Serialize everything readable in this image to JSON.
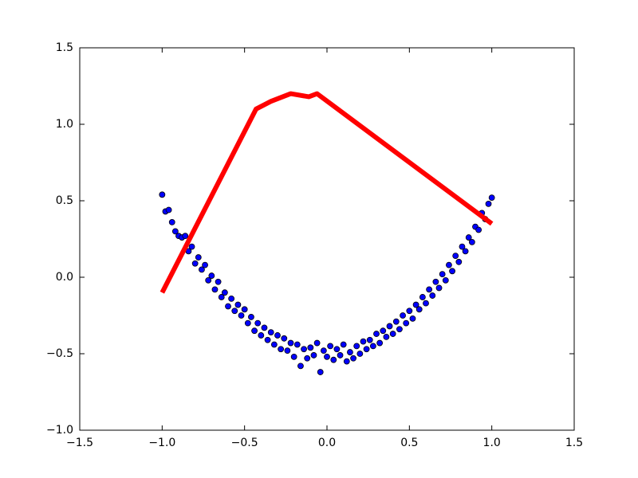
{
  "chart_data": {
    "type": "scatter",
    "xlim": [
      -1.5,
      1.5
    ],
    "ylim": [
      -1.0,
      1.5
    ],
    "xticks": [
      {
        "value": -1.5,
        "label": "−1.5"
      },
      {
        "value": -1.0,
        "label": "−1.0"
      },
      {
        "value": -0.5,
        "label": "−0.5"
      },
      {
        "value": 0.0,
        "label": "0.0"
      },
      0.5,
      {
        "value": 1.0,
        "label": "1.0"
      },
      1.5
    ],
    "yticks": [
      {
        "value": -1.0,
        "label": "−1.0"
      },
      {
        "value": -0.5,
        "label": "−0.5"
      },
      {
        "value": 0.0,
        "label": "0.0"
      },
      0.5,
      {
        "value": 1.0,
        "label": "1.0"
      },
      1.5
    ],
    "grid": false,
    "series": [
      {
        "type": "scatter",
        "color": "#0000ff",
        "x": [
          -1.0,
          -0.98,
          -0.96,
          -0.94,
          -0.92,
          -0.9,
          -0.88,
          -0.86,
          -0.84,
          -0.82,
          -0.8,
          -0.78,
          -0.76,
          -0.74,
          -0.72,
          -0.7,
          -0.68,
          -0.66,
          -0.64,
          -0.62,
          -0.6,
          -0.58,
          -0.56,
          -0.54,
          -0.52,
          -0.5,
          -0.48,
          -0.46,
          -0.44,
          -0.42,
          -0.4,
          -0.38,
          -0.36,
          -0.34,
          -0.32,
          -0.3,
          -0.28,
          -0.26,
          -0.24,
          -0.22,
          -0.2,
          -0.18,
          -0.16,
          -0.14,
          -0.12,
          -0.1,
          -0.08,
          -0.06,
          -0.04,
          -0.02,
          0.0,
          0.02,
          0.04,
          0.06,
          0.08,
          0.1,
          0.12,
          0.14,
          0.16,
          0.18,
          0.2,
          0.22,
          0.24,
          0.26,
          0.28,
          0.3,
          0.32,
          0.34,
          0.36,
          0.38,
          0.4,
          0.42,
          0.44,
          0.46,
          0.48,
          0.5,
          0.52,
          0.54,
          0.56,
          0.58,
          0.6,
          0.62,
          0.64,
          0.66,
          0.68,
          0.7,
          0.72,
          0.74,
          0.76,
          0.78,
          0.8,
          0.82,
          0.84,
          0.86,
          0.88,
          0.9,
          0.92,
          0.94,
          0.96,
          0.98,
          1.0
        ],
        "values": [
          0.54,
          0.43,
          0.44,
          0.36,
          0.3,
          0.27,
          0.26,
          0.27,
          0.17,
          0.2,
          0.09,
          0.13,
          0.05,
          0.08,
          -0.02,
          0.01,
          -0.08,
          -0.03,
          -0.13,
          -0.1,
          -0.19,
          -0.14,
          -0.22,
          -0.18,
          -0.25,
          -0.21,
          -0.3,
          -0.26,
          -0.35,
          -0.3,
          -0.38,
          -0.33,
          -0.41,
          -0.36,
          -0.44,
          -0.38,
          -0.47,
          -0.4,
          -0.48,
          -0.43,
          -0.52,
          -0.44,
          -0.58,
          -0.47,
          -0.53,
          -0.46,
          -0.51,
          -0.43,
          -0.62,
          -0.48,
          -0.52,
          -0.45,
          -0.54,
          -0.47,
          -0.51,
          -0.44,
          -0.55,
          -0.49,
          -0.53,
          -0.45,
          -0.5,
          -0.42,
          -0.47,
          -0.41,
          -0.45,
          -0.37,
          -0.43,
          -0.35,
          -0.39,
          -0.32,
          -0.37,
          -0.29,
          -0.34,
          -0.25,
          -0.3,
          -0.22,
          -0.27,
          -0.18,
          -0.21,
          -0.13,
          -0.17,
          -0.08,
          -0.12,
          -0.03,
          -0.07,
          0.02,
          -0.02,
          0.08,
          0.04,
          0.14,
          0.1,
          0.2,
          0.17,
          0.26,
          0.23,
          0.33,
          0.31,
          0.42,
          0.38,
          0.48,
          0.52
        ]
      },
      {
        "type": "line",
        "color": "#ff0000",
        "x": [
          -1.0,
          -0.43,
          -0.34,
          -0.22,
          -0.11,
          -0.06,
          1.0
        ],
        "values": [
          -0.1,
          1.1,
          1.15,
          1.2,
          1.18,
          1.2,
          0.35
        ]
      }
    ]
  }
}
